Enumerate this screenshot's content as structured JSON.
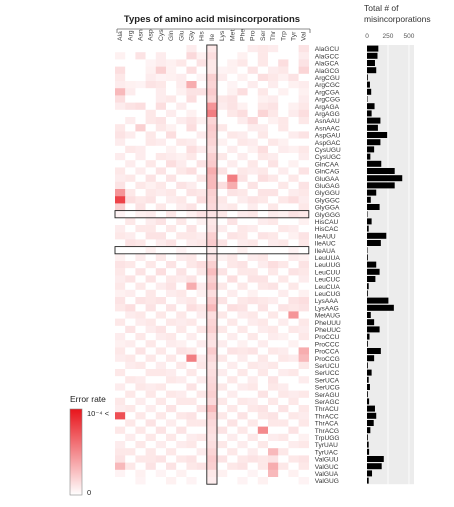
{
  "chart_data": {
    "type": "heatmap",
    "title": "Types of amino acid misincorporations",
    "amino_acids": [
      "Ala",
      "Arg",
      "Asn",
      "Asp",
      "Cys",
      "Gln",
      "Glu",
      "Gly",
      "His",
      "Ile",
      "Lys",
      "Met",
      "Phe",
      "Pro",
      "Ser",
      "Thr",
      "Trp",
      "Tyr",
      "Val"
    ],
    "codons": [
      "AlaGCU",
      "AlaGCC",
      "AlaGCA",
      "AlaGCG",
      "ArgCGU",
      "ArgCGC",
      "ArgCGA",
      "ArgCGG",
      "ArgAGA",
      "ArgAGG",
      "AsnAAU",
      "AsnAAC",
      "AspGAU",
      "AspGAC",
      "CysUGU",
      "CysUGC",
      "GlnCAA",
      "GlnCAG",
      "GluGAA",
      "GluGAG",
      "GlyGGU",
      "GlyGGC",
      "GlyGGA",
      "GlyGGG",
      "HisCAU",
      "HisCAC",
      "IleAUU",
      "IleAUC",
      "IleAUA",
      "LeuUUA",
      "LeuUUG",
      "LeuCUU",
      "LeuCUC",
      "LeuCUA",
      "LeuCUG",
      "LysAAA",
      "LysAAG",
      "MetAUG",
      "PheUUU",
      "PheUUC",
      "ProCCU",
      "ProCCC",
      "ProCCA",
      "ProCCG",
      "SerUCU",
      "SerUCC",
      "SerUCA",
      "SerUCG",
      "SerAGU",
      "SerAGC",
      "ThrACU",
      "ThrACC",
      "ThrACA",
      "ThrACG",
      "TrpUGG",
      "TyrUAU",
      "TyrUAC",
      "ValGUU",
      "ValGUC",
      "ValGUA",
      "ValGUG"
    ],
    "highlighted_column": "Ile",
    "highlighted_rows": [
      "GlyGGG",
      "IleAUA"
    ],
    "legend": {
      "title": "Error rate",
      "max_label": "10⁻⁴ <",
      "min_label": "0",
      "min_color": "#ffffff",
      "max_color": "#e8141b"
    },
    "bar_panel": {
      "title_line1": "Total # of",
      "title_line2": "misincorporations",
      "ticks": [
        0,
        250,
        500
      ],
      "xlim": [
        0,
        560
      ],
      "values": [
        135,
        125,
        95,
        110,
        10,
        35,
        50,
        5,
        90,
        55,
        160,
        130,
        240,
        160,
        85,
        40,
        170,
        330,
        420,
        330,
        110,
        45,
        150,
        5,
        55,
        20,
        230,
        165,
        5,
        10,
        110,
        150,
        100,
        20,
        10,
        255,
        320,
        45,
        85,
        150,
        30,
        10,
        165,
        85,
        10,
        55,
        20,
        35,
        10,
        25,
        95,
        110,
        80,
        40,
        10,
        20,
        25,
        200,
        175,
        60,
        20
      ]
    },
    "cell_note": "values = error rate as fraction of 1e-4 (rows = codons, columns = amino_acids)",
    "values": [
      [
        0,
        0,
        0,
        0,
        0,
        0,
        0,
        0.08,
        0,
        0.1,
        0,
        0,
        0,
        0.08,
        0.1,
        0.08,
        0,
        0,
        0.12
      ],
      [
        0.06,
        0,
        0.12,
        0,
        0.08,
        0,
        0,
        0.16,
        0.06,
        0.14,
        0,
        0,
        0.06,
        0,
        0.1,
        0,
        0,
        0,
        0.08
      ],
      [
        0,
        0,
        0,
        0.05,
        0.08,
        0.06,
        0.1,
        0,
        0.12,
        0.1,
        0,
        0.06,
        0.1,
        0,
        0.1,
        0,
        0.14,
        0,
        0.12
      ],
      [
        0.14,
        0,
        0,
        0.06,
        0.2,
        0.06,
        0,
        0.14,
        0,
        0.1,
        0.05,
        0.06,
        0,
        0.12,
        0,
        0.08,
        0.1,
        0,
        0.18
      ],
      [
        0.1,
        0,
        0,
        0.08,
        0.05,
        0.06,
        0.08,
        0,
        0.05,
        0.2,
        0.08,
        0,
        0.06,
        0,
        0.14,
        0.1,
        0.06,
        0.12,
        0
      ],
      [
        0.08,
        0.06,
        0.05,
        0.12,
        0.1,
        0,
        0.08,
        0.35,
        0,
        0.18,
        0,
        0.05,
        0,
        0.08,
        0,
        0.08,
        0,
        0.06,
        0.08
      ],
      [
        0.3,
        0.08,
        0,
        0,
        0.08,
        0,
        0.06,
        0.12,
        0.12,
        0.22,
        0,
        0.06,
        0.14,
        0,
        0.1,
        0,
        0.06,
        0,
        0.06
      ],
      [
        0.14,
        0,
        0,
        0,
        0.08,
        0.1,
        0,
        0.14,
        0,
        0.18,
        0.1,
        0.12,
        0,
        0,
        0.06,
        0.08,
        0,
        0,
        0.08
      ],
      [
        0.08,
        0.12,
        0.14,
        0,
        0.14,
        0,
        0.08,
        0,
        0,
        0.45,
        0.08,
        0.12,
        0.06,
        0,
        0.1,
        0.12,
        0,
        0.06,
        0.1
      ],
      [
        0,
        0,
        0,
        0.1,
        0,
        0.08,
        0,
        0.06,
        0,
        0.55,
        0,
        0.1,
        0.14,
        0,
        0.18,
        0.1,
        0,
        0.08,
        0.14
      ],
      [
        0,
        0.08,
        0,
        0.1,
        0.12,
        0,
        0.08,
        0.12,
        0.06,
        0.18,
        0,
        0,
        0.08,
        0.16,
        0,
        0.06,
        0.1,
        0,
        0.1
      ],
      [
        0.1,
        0,
        0.2,
        0,
        0.1,
        0.06,
        0,
        0.14,
        0,
        0.22,
        0.1,
        0,
        0,
        0.08,
        0.08,
        0,
        0.1,
        0,
        0
      ],
      [
        0.12,
        0.08,
        0,
        0.1,
        0,
        0.14,
        0,
        0,
        0.08,
        0.2,
        0,
        0.1,
        0.08,
        0,
        0.1,
        0,
        0,
        0.08,
        0.12
      ],
      [
        0.08,
        0,
        0,
        0.1,
        0.08,
        0,
        0.1,
        0.08,
        0,
        0.18,
        0.06,
        0,
        0.1,
        0.08,
        0,
        0.1,
        0.06,
        0,
        0
      ],
      [
        0,
        0.1,
        0.08,
        0,
        0,
        0.06,
        0,
        0.14,
        0.08,
        0.14,
        0,
        0.08,
        0,
        0.06,
        0.14,
        0,
        0.08,
        0.06,
        0.1
      ],
      [
        0.08,
        0,
        0.08,
        0,
        0.1,
        0.08,
        0.06,
        0.1,
        0,
        0.2,
        0.1,
        0,
        0.08,
        0,
        0.1,
        0.08,
        0,
        0,
        0.08
      ],
      [
        0,
        0.08,
        0,
        0.1,
        0,
        0.14,
        0.08,
        0,
        0.12,
        0.22,
        0,
        0.08,
        0,
        0.1,
        0,
        0.12,
        0,
        0.06,
        0
      ],
      [
        0.1,
        0,
        0.08,
        0,
        0.12,
        0,
        0.1,
        0.14,
        0,
        0.35,
        0.12,
        0,
        0.1,
        0.08,
        0.1,
        0,
        0.08,
        0,
        0.12
      ],
      [
        0.08,
        0.1,
        0,
        0.12,
        0,
        0.12,
        0,
        0,
        0.1,
        0.3,
        0,
        0.55,
        0.12,
        0,
        0.14,
        0.1,
        0,
        0.1,
        0
      ],
      [
        0.12,
        0,
        0.1,
        0.06,
        0.1,
        0,
        0.12,
        0.08,
        0,
        0.3,
        0.14,
        0.35,
        0,
        0.12,
        0,
        0,
        0.1,
        0,
        0.12
      ],
      [
        0.45,
        0.1,
        0,
        0.1,
        0.08,
        0.1,
        0,
        0.12,
        0.1,
        0.2,
        0,
        0.12,
        0.1,
        0,
        0.12,
        0.12,
        0,
        0.08,
        0.1
      ],
      [
        0.8,
        0.14,
        0.1,
        0.12,
        0,
        0.08,
        0.1,
        0,
        0.14,
        0.18,
        0.1,
        0,
        0.08,
        0.12,
        0.1,
        0,
        0.1,
        0.14,
        0.08
      ],
      [
        0.2,
        0,
        0.12,
        0,
        0.1,
        0,
        0.08,
        0.12,
        0,
        0.16,
        0.08,
        0.1,
        0,
        0.08,
        0,
        0.1,
        0,
        0,
        0.1
      ],
      [
        0.05,
        0,
        0.06,
        0.08,
        0,
        0.1,
        0,
        0.06,
        0.12,
        0.12,
        0.1,
        0,
        0.08,
        0.1,
        0,
        0.08,
        0.06,
        0.12,
        0.1
      ],
      [
        0,
        0.1,
        0,
        0.08,
        0.12,
        0,
        0.1,
        0,
        0.06,
        0.1,
        0,
        0.12,
        0,
        0,
        0.08,
        0.1,
        0,
        0,
        0.06
      ],
      [
        0.08,
        0,
        0.1,
        0.1,
        0,
        0.1,
        0,
        0.12,
        0,
        0.12,
        0.08,
        0,
        0.1,
        0.08,
        0,
        0,
        0.1,
        0.08,
        0
      ],
      [
        0.1,
        0.08,
        0,
        0.12,
        0.12,
        0,
        0.1,
        0.1,
        0.08,
        0.2,
        0,
        0.12,
        0.1,
        0,
        0.12,
        0.1,
        0,
        0.06,
        0.12
      ],
      [
        0,
        0.12,
        0.1,
        0,
        0.08,
        0.12,
        0,
        0.08,
        0.1,
        0.22,
        0.12,
        0,
        0.08,
        0.1,
        0,
        0.08,
        0.1,
        0,
        0.1
      ],
      [
        0,
        0,
        0,
        0.06,
        0,
        0,
        0.05,
        0,
        0,
        0.08,
        0,
        0,
        0.06,
        0,
        0,
        0,
        0,
        0.05,
        0
      ],
      [
        0.06,
        0,
        0.08,
        0,
        0.1,
        0,
        0.08,
        0.1,
        0,
        0.12,
        0.06,
        0.1,
        0,
        0.08,
        0.1,
        0,
        0,
        0.08,
        0.06
      ],
      [
        0.12,
        0.1,
        0,
        0.1,
        0,
        0.12,
        0,
        0.1,
        0.14,
        0.2,
        0,
        0.1,
        0.12,
        0,
        0.08,
        0.14,
        0.1,
        0,
        0.12
      ],
      [
        0.1,
        0,
        0.12,
        0,
        0.14,
        0,
        0.12,
        0,
        0.1,
        0.28,
        0.12,
        0,
        0.1,
        0.1,
        0,
        0.1,
        0,
        0.12,
        0.1
      ],
      [
        0.08,
        0.12,
        0,
        0.12,
        0,
        0.1,
        0.08,
        0.12,
        0,
        0.2,
        0,
        0.14,
        0,
        0.12,
        0.12,
        0,
        0.1,
        0,
        0.08
      ],
      [
        0.1,
        0,
        0.1,
        0,
        0.08,
        0.12,
        0,
        0.35,
        0.08,
        0.25,
        0.1,
        0,
        0.1,
        0,
        0.1,
        0.12,
        0,
        0.1,
        0
      ],
      [
        0.06,
        0.08,
        0,
        0.1,
        0,
        0.08,
        0.1,
        0,
        0.06,
        0.14,
        0,
        0.08,
        0,
        0.06,
        0,
        0,
        0.08,
        0,
        0.06
      ],
      [
        0.12,
        0,
        0.12,
        0.1,
        0.12,
        0,
        0.08,
        0.1,
        0,
        0.22,
        0.12,
        0,
        0.1,
        0.12,
        0.1,
        0.08,
        0,
        0.12,
        0.14
      ],
      [
        0.1,
        0.14,
        0,
        0.12,
        0,
        0.12,
        0,
        0.14,
        0.1,
        0.3,
        0,
        0.14,
        0.12,
        0,
        0.12,
        0,
        0.12,
        0.1,
        0.12
      ],
      [
        0,
        0.08,
        0.1,
        0,
        0.1,
        0,
        0.1,
        0,
        0.08,
        0.14,
        0.1,
        0,
        0.08,
        0.1,
        0,
        0.1,
        0,
        0.45,
        0
      ],
      [
        0.1,
        0,
        0.08,
        0.1,
        0,
        0.1,
        0.08,
        0.1,
        0,
        0.18,
        0,
        0.1,
        0,
        0.08,
        0.1,
        0,
        0.08,
        0,
        0.1
      ],
      [
        0,
        0.12,
        0,
        0.08,
        0.12,
        0,
        0.1,
        0,
        0.1,
        0.2,
        0.1,
        0,
        0.1,
        0,
        0.08,
        0.1,
        0,
        0.1,
        0.08
      ],
      [
        0.08,
        0,
        0.1,
        0,
        0.08,
        0.1,
        0,
        0.08,
        0,
        0.14,
        0,
        0.08,
        0,
        0.1,
        0,
        0.08,
        0.06,
        0,
        0.1
      ],
      [
        0.06,
        0.08,
        0,
        0.1,
        0,
        0.08,
        0.06,
        0,
        0.08,
        0.12,
        0.08,
        0,
        0.06,
        0,
        0.08,
        0,
        0,
        0.06,
        0
      ],
      [
        0.1,
        0,
        0.12,
        0,
        0.1,
        0,
        0.12,
        0.1,
        0,
        0.22,
        0,
        0.12,
        0.1,
        0.12,
        0,
        0.1,
        0.08,
        0,
        0.35
      ],
      [
        0.08,
        0.1,
        0,
        0.1,
        0,
        0.1,
        0,
        0.55,
        0.08,
        0.16,
        0.1,
        0,
        0.08,
        0,
        0.1,
        0,
        0.1,
        0.08,
        0.3
      ],
      [
        0,
        0.08,
        0.1,
        0,
        0.08,
        0,
        0.1,
        0,
        0.1,
        0.12,
        0,
        0.08,
        0,
        0.1,
        0.08,
        0.1,
        0,
        0,
        0.1
      ],
      [
        0.1,
        0,
        0,
        0.1,
        0.1,
        0.08,
        0,
        0.1,
        0,
        0.14,
        0.08,
        0,
        0.1,
        0,
        0.1,
        0,
        0.08,
        0.1,
        0
      ],
      [
        0,
        0.1,
        0.08,
        0,
        0,
        0.1,
        0.08,
        0,
        0.08,
        0.16,
        0,
        0.1,
        0,
        0.08,
        0,
        0.12,
        0,
        0,
        0.08
      ],
      [
        0.08,
        0,
        0.1,
        0.08,
        0.1,
        0,
        0,
        0.12,
        0,
        0.18,
        0.1,
        0,
        0.08,
        0.1,
        0,
        0.1,
        0.08,
        0,
        0
      ],
      [
        0,
        0.1,
        0,
        0.1,
        0,
        0.1,
        0.08,
        0,
        0.1,
        0.2,
        0,
        0.08,
        0,
        0,
        0.12,
        0,
        0.1,
        0.08,
        0.1
      ],
      [
        0.1,
        0,
        0.08,
        0,
        0.1,
        0,
        0.1,
        0.1,
        0,
        0.16,
        0.1,
        0,
        0.1,
        0.08,
        0,
        0.1,
        0,
        0.1,
        0
      ],
      [
        0.08,
        0.1,
        0,
        0.08,
        0,
        0.12,
        0,
        0,
        0.12,
        0.3,
        0,
        0.1,
        0,
        0.1,
        0.12,
        0,
        0.12,
        0,
        0.1
      ],
      [
        0.75,
        0,
        0.1,
        0,
        0.1,
        0,
        0.1,
        0.12,
        0,
        0.2,
        0.1,
        0,
        0.12,
        0,
        0.1,
        0.12,
        0,
        0.1,
        0.08
      ],
      [
        0,
        0.1,
        0,
        0.12,
        0,
        0.08,
        0,
        0.1,
        0.1,
        0.16,
        0,
        0.12,
        0,
        0.1,
        0,
        0.1,
        0.1,
        0,
        0.1
      ],
      [
        0.1,
        0,
        0.1,
        0,
        0.12,
        0,
        0.12,
        0,
        0,
        0.14,
        0.12,
        0,
        0.1,
        0,
        0.5,
        0,
        0,
        0.12,
        0
      ],
      [
        0,
        0.08,
        0,
        0.1,
        0,
        0.1,
        0,
        0.08,
        0.1,
        0.12,
        0,
        0.08,
        0,
        0.1,
        0,
        0.08,
        0.1,
        0,
        0.06
      ],
      [
        0.08,
        0,
        0.1,
        0,
        0.08,
        0,
        0.08,
        0.1,
        0,
        0.14,
        0.1,
        0,
        0.08,
        0,
        0.1,
        0,
        0,
        0.08,
        0.1
      ],
      [
        0.1,
        0.1,
        0,
        0.1,
        0,
        0.1,
        0,
        0,
        0.08,
        0.18,
        0,
        0.1,
        0,
        0.08,
        0,
        0.3,
        0.1,
        0,
        0
      ],
      [
        0.12,
        0,
        0.1,
        0.1,
        0.12,
        0,
        0.1,
        0.12,
        0,
        0.22,
        0.12,
        0,
        0.1,
        0.12,
        0.1,
        0.12,
        0,
        0.1,
        0.12
      ],
      [
        0.3,
        0.1,
        0,
        0.12,
        0,
        0.12,
        0,
        0.1,
        0.12,
        0.2,
        0,
        0.1,
        0.12,
        0,
        0.1,
        0.35,
        0.1,
        0,
        0.1
      ],
      [
        0.05,
        0,
        0.06,
        0,
        0.05,
        0,
        0.06,
        0,
        0,
        0.1,
        0.06,
        0,
        0,
        0.05,
        0,
        0.3,
        0,
        0.06,
        0
      ],
      [
        0,
        0,
        0.05,
        0,
        0,
        0.06,
        0,
        0.05,
        0,
        0.08,
        0,
        0,
        0.05,
        0,
        0.06,
        0,
        0,
        0,
        0.05
      ]
    ]
  }
}
